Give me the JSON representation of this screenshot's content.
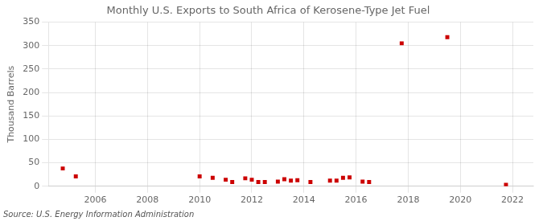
{
  "chart_data": {
    "type": "scatter",
    "title": "Monthly U.S. Exports to South Africa of Kerosene-Type Jet Fuel",
    "y_label": "Thousand Barrels",
    "annotations": [
      "Source: U.S. Energy Information Administration"
    ],
    "x": [
      2004.75,
      2005.25,
      2010.0,
      2010.5,
      2011.0,
      2011.25,
      2011.75,
      2012.0,
      2012.25,
      2012.5,
      2013.0,
      2013.25,
      2013.5,
      2013.75,
      2014.25,
      2015.0,
      2015.25,
      2015.5,
      2015.75,
      2016.25,
      2016.5,
      2017.75,
      2019.5,
      2021.75
    ],
    "values": [
      38,
      21,
      21,
      18,
      14,
      9,
      17,
      14,
      9,
      9,
      10,
      15,
      12,
      13,
      9,
      12,
      12,
      18,
      19,
      10,
      9,
      305,
      318,
      3
    ],
    "color": "#cc0000",
    "marker": "square",
    "xlim": [
      2004.2,
      2022.8
    ],
    "xticks": [
      2006,
      2008,
      2010,
      2012,
      2014,
      2016,
      2018,
      2020,
      2022
    ],
    "ylim": [
      0,
      350
    ],
    "yticks": [
      0,
      50,
      100,
      150,
      200,
      250,
      300,
      350
    ],
    "grid": true
  }
}
